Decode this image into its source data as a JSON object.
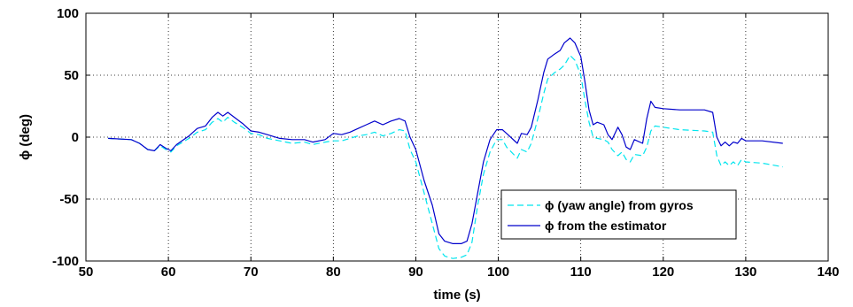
{
  "chart_data": {
    "type": "line",
    "xlabel": "time (s)",
    "ylabel": "ϕ (deg)",
    "xlim": [
      50,
      140
    ],
    "ylim": [
      -100,
      100
    ],
    "xticks": [
      50,
      60,
      70,
      80,
      90,
      100,
      110,
      120,
      130,
      140
    ],
    "yticks": [
      -100,
      -50,
      0,
      50,
      100
    ],
    "grid": true,
    "legend_position": "lower-right",
    "series": [
      {
        "name": "ϕ (yaw angle) from gyros",
        "color": "#00e5ee",
        "style": "dashed",
        "points": [
          [
            52.7,
            -1
          ],
          [
            55.5,
            -2
          ],
          [
            56.5,
            -5
          ],
          [
            57.5,
            -10
          ],
          [
            58.3,
            -11
          ],
          [
            59,
            -7
          ],
          [
            59.7,
            -10
          ],
          [
            60.3,
            -12
          ],
          [
            61,
            -7
          ],
          [
            62.5,
            -1
          ],
          [
            63.5,
            4
          ],
          [
            64.5,
            6
          ],
          [
            65.3,
            12
          ],
          [
            66,
            15
          ],
          [
            66.6,
            12
          ],
          [
            67.2,
            16
          ],
          [
            68,
            12
          ],
          [
            69,
            8
          ],
          [
            70,
            3
          ],
          [
            71,
            2
          ],
          [
            72,
            -1
          ],
          [
            73.5,
            -3
          ],
          [
            75,
            -5
          ],
          [
            76.5,
            -4
          ],
          [
            77.5,
            -6
          ],
          [
            79,
            -4
          ],
          [
            80,
            -3
          ],
          [
            81,
            -3
          ],
          [
            82,
            -1
          ],
          [
            83,
            1
          ],
          [
            84,
            2
          ],
          [
            85,
            4
          ],
          [
            86,
            1
          ],
          [
            87,
            3
          ],
          [
            88,
            6
          ],
          [
            88.7,
            5
          ],
          [
            89.3,
            -10
          ],
          [
            90,
            -20
          ],
          [
            91,
            -45
          ],
          [
            92,
            -70
          ],
          [
            92.8,
            -90
          ],
          [
            93.5,
            -96
          ],
          [
            94.5,
            -98
          ],
          [
            95.5,
            -97
          ],
          [
            96.2,
            -95
          ],
          [
            96.8,
            -85
          ],
          [
            97.5,
            -55
          ],
          [
            98.2,
            -30
          ],
          [
            99,
            -12
          ],
          [
            99.8,
            -2
          ],
          [
            100.5,
            -2
          ],
          [
            101,
            -8
          ],
          [
            102.3,
            -17
          ],
          [
            102.8,
            -10
          ],
          [
            103.5,
            -12
          ],
          [
            104,
            -5
          ],
          [
            104.8,
            15
          ],
          [
            105.5,
            35
          ],
          [
            106,
            47
          ],
          [
            106.8,
            52
          ],
          [
            107.5,
            55
          ],
          [
            108,
            58
          ],
          [
            108.7,
            66
          ],
          [
            109.3,
            62
          ],
          [
            110,
            50
          ],
          [
            110.5,
            30
          ],
          [
            111,
            12
          ],
          [
            111.5,
            0
          ],
          [
            112,
            -1
          ],
          [
            112.8,
            -2
          ],
          [
            113.3,
            -4
          ],
          [
            113.8,
            -10
          ],
          [
            114.5,
            -15
          ],
          [
            115,
            -12
          ],
          [
            115.5,
            -18
          ],
          [
            116,
            -20
          ],
          [
            116.5,
            -14
          ],
          [
            117.5,
            -15
          ],
          [
            118,
            -8
          ],
          [
            118.5,
            5
          ],
          [
            119,
            9
          ],
          [
            120,
            8
          ],
          [
            122,
            6
          ],
          [
            125,
            5
          ],
          [
            126,
            4
          ],
          [
            126.5,
            -15
          ],
          [
            127,
            -23
          ],
          [
            127.5,
            -20
          ],
          [
            128,
            -23
          ],
          [
            128.5,
            -20
          ],
          [
            129,
            -23
          ],
          [
            129.5,
            -18
          ],
          [
            130,
            -20
          ],
          [
            132,
            -21
          ],
          [
            134.5,
            -24
          ]
        ]
      },
      {
        "name": "ϕ from the estimator",
        "color": "#0000cc",
        "style": "solid",
        "points": [
          [
            52.7,
            -1
          ],
          [
            55.5,
            -2
          ],
          [
            56.5,
            -5
          ],
          [
            57.5,
            -10
          ],
          [
            58.3,
            -11
          ],
          [
            59,
            -6
          ],
          [
            59.7,
            -9
          ],
          [
            60.3,
            -11
          ],
          [
            61,
            -6
          ],
          [
            62.5,
            1
          ],
          [
            63.5,
            7
          ],
          [
            64.5,
            9
          ],
          [
            65.3,
            16
          ],
          [
            66,
            20
          ],
          [
            66.6,
            17
          ],
          [
            67.2,
            20
          ],
          [
            68,
            16
          ],
          [
            69,
            11
          ],
          [
            70,
            5
          ],
          [
            71,
            4
          ],
          [
            72,
            2
          ],
          [
            73.5,
            -1
          ],
          [
            75,
            -2
          ],
          [
            76.5,
            -2
          ],
          [
            77.5,
            -4
          ],
          [
            79,
            -2
          ],
          [
            80,
            3
          ],
          [
            81,
            2
          ],
          [
            82,
            4
          ],
          [
            83,
            7
          ],
          [
            84,
            10
          ],
          [
            85,
            13
          ],
          [
            86,
            10
          ],
          [
            87,
            13
          ],
          [
            88,
            15
          ],
          [
            88.7,
            13
          ],
          [
            89.3,
            0
          ],
          [
            90,
            -10
          ],
          [
            91,
            -35
          ],
          [
            92,
            -55
          ],
          [
            92.8,
            -78
          ],
          [
            93.5,
            -84
          ],
          [
            94.5,
            -86
          ],
          [
            95.5,
            -86
          ],
          [
            96.2,
            -84
          ],
          [
            96.8,
            -70
          ],
          [
            97.5,
            -45
          ],
          [
            98.2,
            -20
          ],
          [
            99,
            -2
          ],
          [
            99.8,
            6
          ],
          [
            100.5,
            6
          ],
          [
            101,
            3
          ],
          [
            102.3,
            -5
          ],
          [
            102.8,
            3
          ],
          [
            103.5,
            2
          ],
          [
            104,
            8
          ],
          [
            104.8,
            30
          ],
          [
            105.5,
            52
          ],
          [
            106,
            63
          ],
          [
            106.8,
            67
          ],
          [
            107.5,
            70
          ],
          [
            108,
            76
          ],
          [
            108.7,
            80
          ],
          [
            109.3,
            76
          ],
          [
            110,
            65
          ],
          [
            110.5,
            45
          ],
          [
            111,
            22
          ],
          [
            111.5,
            10
          ],
          [
            112,
            12
          ],
          [
            112.8,
            10
          ],
          [
            113.3,
            2
          ],
          [
            113.8,
            -2
          ],
          [
            114.5,
            8
          ],
          [
            115,
            2
          ],
          [
            115.5,
            -8
          ],
          [
            116,
            -10
          ],
          [
            116.5,
            -2
          ],
          [
            117.5,
            -5
          ],
          [
            118,
            15
          ],
          [
            118.5,
            29
          ],
          [
            119,
            24
          ],
          [
            120,
            23
          ],
          [
            122,
            22
          ],
          [
            125,
            22
          ],
          [
            126,
            20
          ],
          [
            126.5,
            0
          ],
          [
            127,
            -7
          ],
          [
            127.5,
            -4
          ],
          [
            128,
            -7
          ],
          [
            128.5,
            -4
          ],
          [
            129,
            -5
          ],
          [
            129.5,
            -1
          ],
          [
            130,
            -3
          ],
          [
            132,
            -3
          ],
          [
            134.5,
            -5
          ]
        ]
      }
    ]
  }
}
